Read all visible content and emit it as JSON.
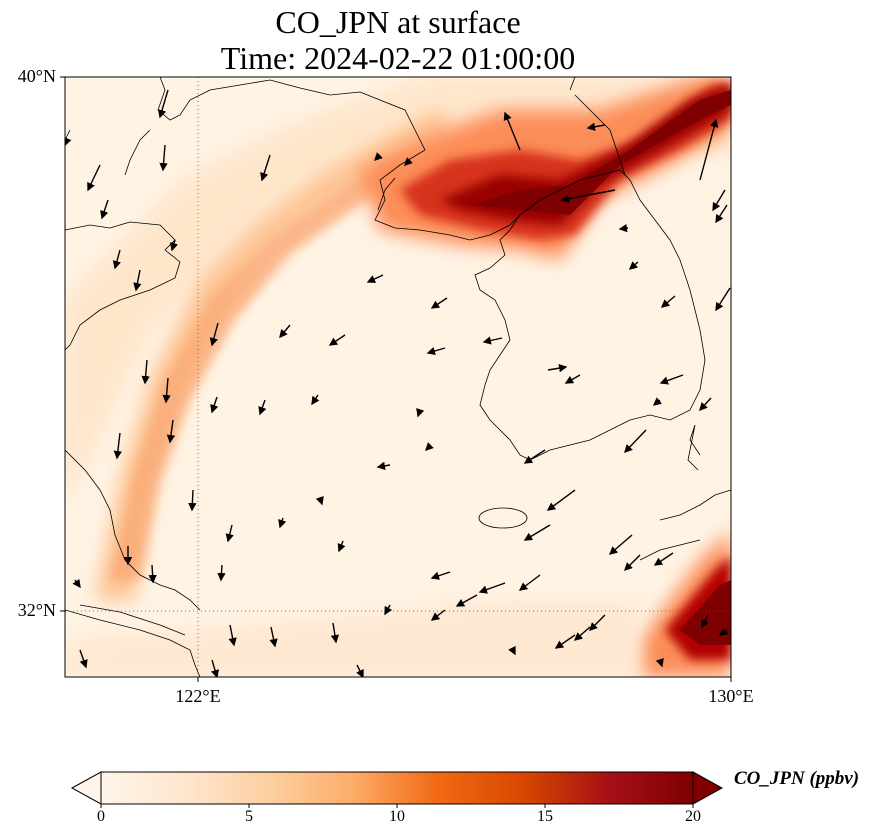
{
  "title_line1": "CO_JPN at surface",
  "title_line2": "Time: 2024-02-22 01:00:00",
  "colorbar_label": "CO_JPN (ppbv)",
  "colorbar_ticks": [
    "0",
    "5",
    "10",
    "15",
    "20"
  ],
  "colormap": [
    "#fff5eb",
    "#fee6ce",
    "#fdd0a2",
    "#fdae6b",
    "#f16913",
    "#d94801",
    "#a50f15",
    "#7f0000"
  ],
  "lat_labels": [
    "40°N",
    "32°N"
  ],
  "lon_labels": [
    "122°E",
    "130°E"
  ],
  "map_extent": {
    "lon": [
      120,
      130
    ],
    "lat": [
      31,
      40
    ]
  },
  "gridlines": {
    "lon": [
      122
    ],
    "lat": [
      32
    ],
    "style": "dotted"
  },
  "overlay": "wind vectors"
}
